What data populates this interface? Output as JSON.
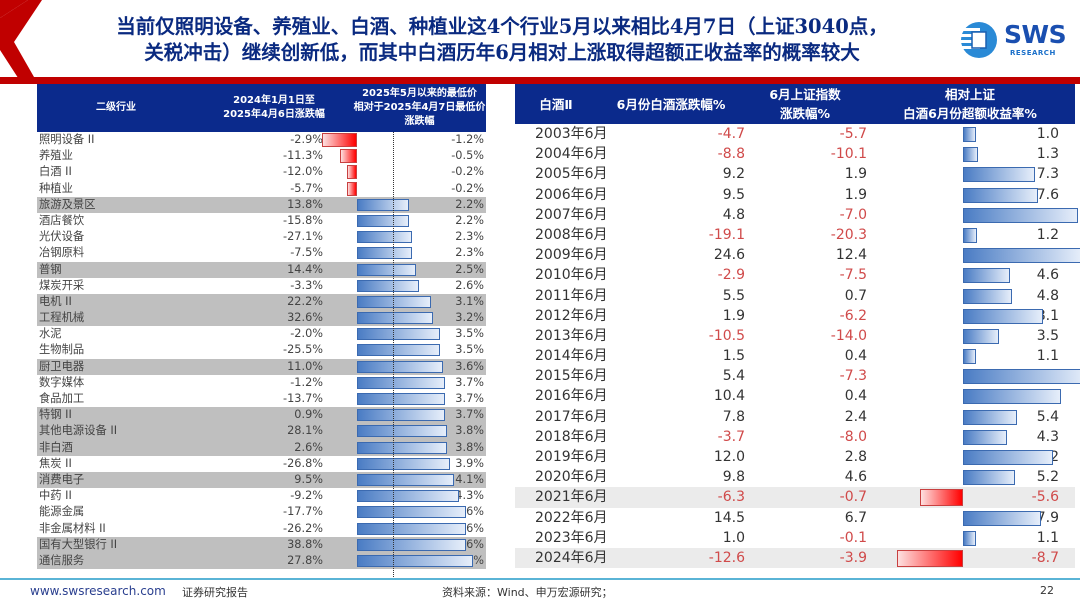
{
  "header": {
    "title_line1": "当前仅照明设备、养殖业、白酒、种植业这4个行业5月以来相比4月7日（上证3040点，",
    "title_line2": "关税冲击）继续创新低，而其中白酒历年6月相对上涨取得超额正收益率的概率较大",
    "logo_text": "SWS",
    "logo_subtext": "RESEARCH",
    "colors": {
      "red": "#c00000",
      "navy": "#0b2a8c",
      "title": "#0a2a80"
    }
  },
  "left_table": {
    "headers": [
      "二级行业",
      "2024年1月1日至\n2025年4月6日涨跌幅",
      "2025年5月以来的最低价\n相对于2025年4月7日最低价\n涨跌幅"
    ],
    "rows": [
      {
        "name": "照明设备 II",
        "chg_2024": "-2.9%",
        "chg_since_may": "-1.2%",
        "bar": -1.2,
        "highlight": false
      },
      {
        "name": "养殖业",
        "chg_2024": "-11.3%",
        "chg_since_may": "-0.5%",
        "bar": -0.5,
        "highlight": false
      },
      {
        "name": "白酒 II",
        "chg_2024": "-12.0%",
        "chg_since_may": "-0.2%",
        "bar": -0.2,
        "highlight": false
      },
      {
        "name": "种植业",
        "chg_2024": "-5.7%",
        "chg_since_may": "-0.2%",
        "bar": -0.2,
        "highlight": false
      },
      {
        "name": "旅游及景区",
        "chg_2024": "13.8%",
        "chg_since_may": "2.2%",
        "bar": 2.2,
        "highlight": true
      },
      {
        "name": "酒店餐饮",
        "chg_2024": "-15.8%",
        "chg_since_may": "2.2%",
        "bar": 2.2,
        "highlight": false
      },
      {
        "name": "光伏设备",
        "chg_2024": "-27.1%",
        "chg_since_may": "2.3%",
        "bar": 2.3,
        "highlight": false
      },
      {
        "name": "冶钢原料",
        "chg_2024": "-7.5%",
        "chg_since_may": "2.3%",
        "bar": 2.3,
        "highlight": false
      },
      {
        "name": "普钢",
        "chg_2024": "14.4%",
        "chg_since_may": "2.5%",
        "bar": 2.5,
        "highlight": true
      },
      {
        "name": "煤炭开采",
        "chg_2024": "-3.3%",
        "chg_since_may": "2.6%",
        "bar": 2.6,
        "highlight": false
      },
      {
        "name": "电机 II",
        "chg_2024": "22.2%",
        "chg_since_may": "3.1%",
        "bar": 3.1,
        "highlight": true
      },
      {
        "name": "工程机械",
        "chg_2024": "32.6%",
        "chg_since_may": "3.2%",
        "bar": 3.2,
        "highlight": true
      },
      {
        "name": "水泥",
        "chg_2024": "-2.0%",
        "chg_since_may": "3.5%",
        "bar": 3.5,
        "highlight": false
      },
      {
        "name": "生物制品",
        "chg_2024": "-25.5%",
        "chg_since_may": "3.5%",
        "bar": 3.5,
        "highlight": false
      },
      {
        "name": "厨卫电器",
        "chg_2024": "11.0%",
        "chg_since_may": "3.6%",
        "bar": 3.6,
        "highlight": true
      },
      {
        "name": "数字媒体",
        "chg_2024": "-1.2%",
        "chg_since_may": "3.7%",
        "bar": 3.7,
        "highlight": false
      },
      {
        "name": "食品加工",
        "chg_2024": "-13.7%",
        "chg_since_may": "3.7%",
        "bar": 3.7,
        "highlight": false
      },
      {
        "name": "特钢 II",
        "chg_2024": "0.9%",
        "chg_since_may": "3.7%",
        "bar": 3.7,
        "highlight": true
      },
      {
        "name": "其他电源设备 II",
        "chg_2024": "28.1%",
        "chg_since_may": "3.8%",
        "bar": 3.8,
        "highlight": true
      },
      {
        "name": "非白酒",
        "chg_2024": "2.6%",
        "chg_since_may": "3.8%",
        "bar": 3.8,
        "highlight": true
      },
      {
        "name": "焦炭 II",
        "chg_2024": "-26.8%",
        "chg_since_may": "3.9%",
        "bar": 3.9,
        "highlight": false
      },
      {
        "name": "消费电子",
        "chg_2024": "9.5%",
        "chg_since_may": "4.1%",
        "bar": 4.1,
        "highlight": true
      },
      {
        "name": "中药 II",
        "chg_2024": "-9.2%",
        "chg_since_may": "4.3%",
        "bar": 4.3,
        "highlight": false
      },
      {
        "name": "能源金属",
        "chg_2024": "-17.7%",
        "chg_since_may": "4.6%",
        "bar": 4.6,
        "highlight": false
      },
      {
        "name": "非金属材料 II",
        "chg_2024": "-26.2%",
        "chg_since_may": "4.6%",
        "bar": 4.6,
        "highlight": false
      },
      {
        "name": "国有大型银行 II",
        "chg_2024": "38.8%",
        "chg_since_may": "4.6%",
        "bar": 4.6,
        "highlight": true
      },
      {
        "name": "通信服务",
        "chg_2024": "27.8%",
        "chg_since_may": "4.9%",
        "bar": 4.9,
        "highlight": true
      }
    ]
  },
  "right_table": {
    "headers": [
      "白酒Ⅱ",
      "6月份白酒涨跌幅%",
      "6月上证指数\n涨跌幅%",
      "相对上证\n白酒6月份超额收益率%"
    ],
    "rows": [
      {
        "year": "2003年6月",
        "baijiu": "-4.7",
        "sh": "-5.7",
        "excess": "1.0",
        "highlight": false
      },
      {
        "year": "2004年6月",
        "baijiu": "-8.8",
        "sh": "-10.1",
        "excess": "1.3",
        "highlight": false
      },
      {
        "year": "2005年6月",
        "baijiu": "9.2",
        "sh": "1.9",
        "excess": "7.3",
        "highlight": false
      },
      {
        "year": "2006年6月",
        "baijiu": "9.5",
        "sh": "1.9",
        "excess": "7.6",
        "highlight": false
      },
      {
        "year": "2007年6月",
        "baijiu": "4.8",
        "sh": "-7.0",
        "excess": "11.8",
        "highlight": false
      },
      {
        "year": "2008年6月",
        "baijiu": "-19.1",
        "sh": "-20.3",
        "excess": "1.2",
        "highlight": false
      },
      {
        "year": "2009年6月",
        "baijiu": "24.6",
        "sh": "12.4",
        "excess": "12.2",
        "highlight": false
      },
      {
        "year": "2010年6月",
        "baijiu": "-2.9",
        "sh": "-7.5",
        "excess": "4.6",
        "highlight": false
      },
      {
        "year": "2011年6月",
        "baijiu": "5.5",
        "sh": "0.7",
        "excess": "4.8",
        "highlight": false
      },
      {
        "year": "2012年6月",
        "baijiu": "1.9",
        "sh": "-6.2",
        "excess": "8.1",
        "highlight": false
      },
      {
        "year": "2013年6月",
        "baijiu": "-10.5",
        "sh": "-14.0",
        "excess": "3.5",
        "highlight": false
      },
      {
        "year": "2014年6月",
        "baijiu": "1.5",
        "sh": "0.4",
        "excess": "1.1",
        "highlight": false
      },
      {
        "year": "2015年6月",
        "baijiu": "5.4",
        "sh": "-7.3",
        "excess": "12.7",
        "highlight": false
      },
      {
        "year": "2016年6月",
        "baijiu": "10.4",
        "sh": "0.4",
        "excess": "10.0",
        "highlight": false
      },
      {
        "year": "2017年6月",
        "baijiu": "7.8",
        "sh": "2.4",
        "excess": "5.4",
        "highlight": false
      },
      {
        "year": "2018年6月",
        "baijiu": "-3.7",
        "sh": "-8.0",
        "excess": "4.3",
        "highlight": false
      },
      {
        "year": "2019年6月",
        "baijiu": "12.0",
        "sh": "2.8",
        "excess": "9.2",
        "highlight": false
      },
      {
        "year": "2020年6月",
        "baijiu": "9.8",
        "sh": "4.6",
        "excess": "5.2",
        "highlight": false
      },
      {
        "year": "2021年6月",
        "baijiu": "-6.3",
        "sh": "-0.7",
        "excess": "-5.6",
        "highlight": true
      },
      {
        "year": "2022年6月",
        "baijiu": "14.5",
        "sh": "6.7",
        "excess": "7.9",
        "highlight": false
      },
      {
        "year": "2023年6月",
        "baijiu": "1.0",
        "sh": "-0.1",
        "excess": "1.1",
        "highlight": false
      },
      {
        "year": "2024年6月",
        "baijiu": "-12.6",
        "sh": "-3.9",
        "excess": "-8.7",
        "highlight": true
      }
    ]
  },
  "chart_data": [
    {
      "type": "bar",
      "title": "2025年5月以来的最低价相对于2025年4月7日最低价涨跌幅",
      "orientation": "horizontal",
      "categories": [
        "照明设备 II",
        "养殖业",
        "白酒 II",
        "种植业",
        "旅游及景区",
        "酒店餐饮",
        "光伏设备",
        "冶钢原料",
        "普钢",
        "煤炭开采",
        "电机 II",
        "工程机械",
        "水泥",
        "生物制品",
        "厨卫电器",
        "数字媒体",
        "食品加工",
        "特钢 II",
        "其他电源设备 II",
        "非白酒",
        "焦炭 II",
        "消费电子",
        "中药 II",
        "能源金属",
        "非金属材料 II",
        "国有大型银行 II",
        "通信服务"
      ],
      "series": [
        {
          "name": "2024年1月1日至2025年4月6日涨跌幅(%)",
          "values": [
            -2.9,
            -11.3,
            -12.0,
            -5.7,
            13.8,
            -15.8,
            -27.1,
            -7.5,
            14.4,
            -3.3,
            22.2,
            32.6,
            -2.0,
            -25.5,
            11.0,
            -1.2,
            -13.7,
            0.9,
            28.1,
            2.6,
            -26.8,
            9.5,
            -9.2,
            -17.7,
            -26.2,
            38.8,
            27.8
          ]
        },
        {
          "name": "2025年5月以来的最低价相对于2025年4月7日最低价涨跌幅(%)",
          "values": [
            -1.2,
            -0.5,
            -0.2,
            -0.2,
            2.2,
            2.2,
            2.3,
            2.3,
            2.5,
            2.6,
            3.1,
            3.2,
            3.5,
            3.5,
            3.6,
            3.7,
            3.7,
            3.7,
            3.8,
            3.8,
            3.9,
            4.1,
            4.3,
            4.6,
            4.6,
            4.6,
            4.9
          ]
        }
      ],
      "xlabel": "",
      "ylabel": "二级行业"
    },
    {
      "type": "bar",
      "title": "相对上证白酒6月份超额收益率%",
      "orientation": "horizontal",
      "categories": [
        "2003年6月",
        "2004年6月",
        "2005年6月",
        "2006年6月",
        "2007年6月",
        "2008年6月",
        "2009年6月",
        "2010年6月",
        "2011年6月",
        "2012年6月",
        "2013年6月",
        "2014年6月",
        "2015年6月",
        "2016年6月",
        "2017年6月",
        "2018年6月",
        "2019年6月",
        "2020年6月",
        "2021年6月",
        "2022年6月",
        "2023年6月",
        "2024年6月"
      ],
      "series": [
        {
          "name": "6月份白酒涨跌幅%",
          "values": [
            -4.7,
            -8.8,
            9.2,
            9.5,
            4.8,
            -19.1,
            24.6,
            -2.9,
            5.5,
            1.9,
            -10.5,
            1.5,
            5.4,
            10.4,
            7.8,
            -3.7,
            12.0,
            9.8,
            -6.3,
            14.5,
            1.0,
            -12.6
          ]
        },
        {
          "name": "6月上证指数涨跌幅%",
          "values": [
            -5.7,
            -10.1,
            1.9,
            1.9,
            -7.0,
            -20.3,
            12.4,
            -7.5,
            0.7,
            -6.2,
            -14.0,
            0.4,
            -7.3,
            0.4,
            2.4,
            -8.0,
            2.8,
            4.6,
            -0.7,
            6.7,
            -0.1,
            -3.9
          ]
        },
        {
          "name": "相对上证白酒6月份超额收益率%",
          "values": [
            1.0,
            1.3,
            7.3,
            7.6,
            11.8,
            1.2,
            12.2,
            4.6,
            4.8,
            8.1,
            3.5,
            1.1,
            12.7,
            10.0,
            5.4,
            4.3,
            9.2,
            5.2,
            -5.6,
            7.9,
            1.1,
            -8.7
          ]
        }
      ],
      "xlabel": "",
      "ylabel": "白酒Ⅱ"
    }
  ],
  "footer": {
    "url": "www.swsresearch.com",
    "doc_type": "证券研究报告",
    "source": "资料来源：Wind、申万宏源研究；",
    "page": "22"
  }
}
